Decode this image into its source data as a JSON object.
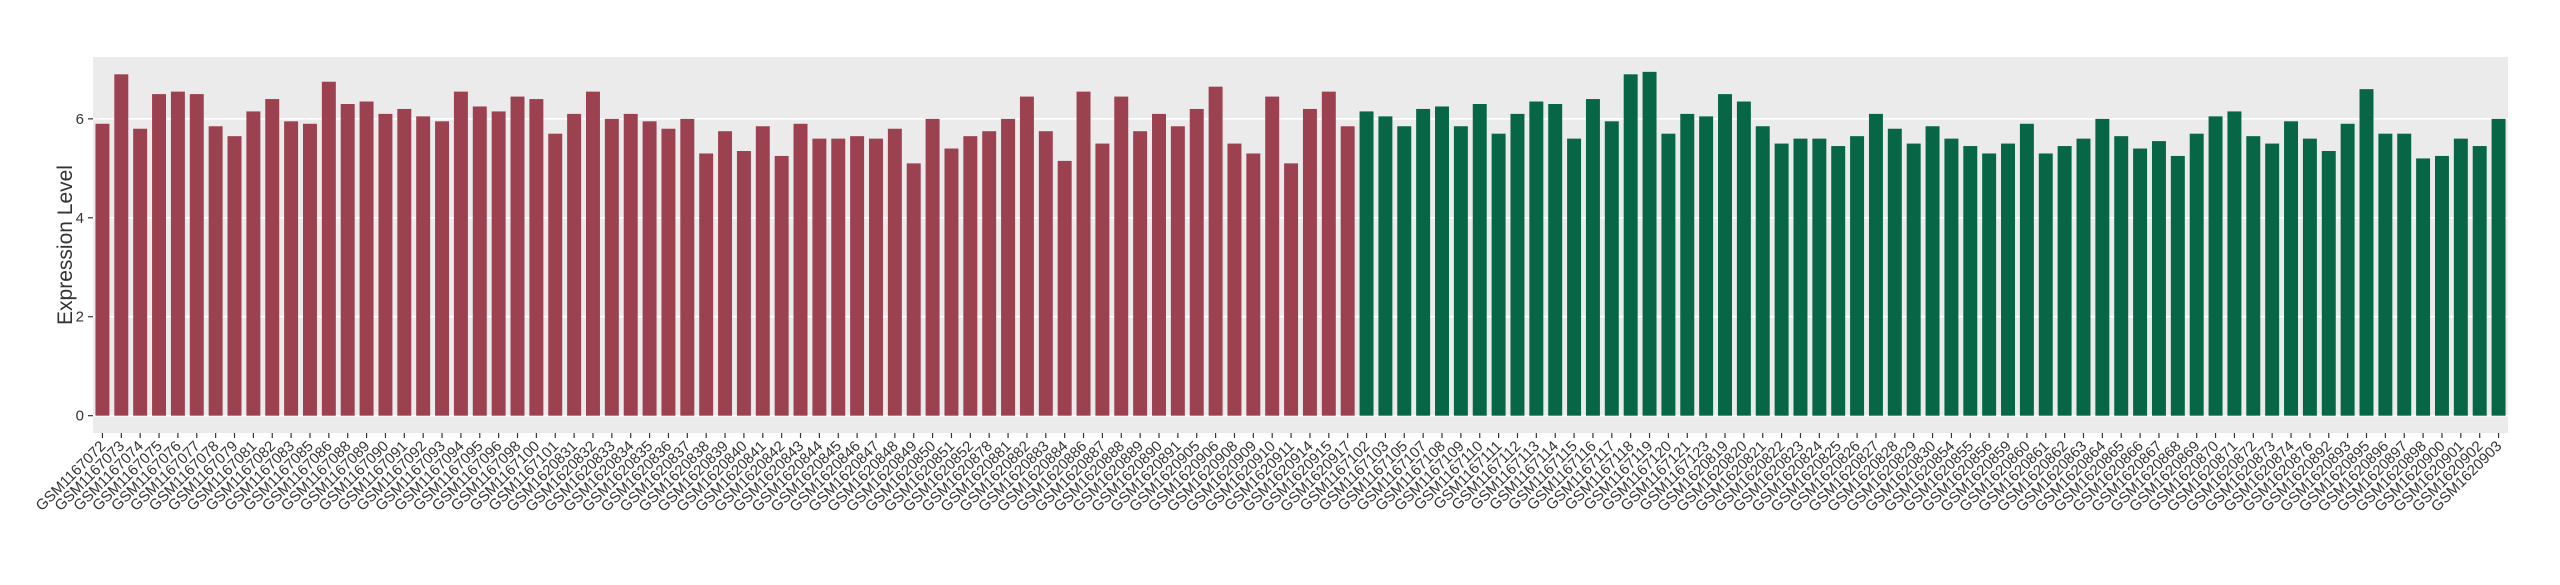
{
  "chart_data": {
    "type": "bar",
    "y_label": "Expression Level",
    "categories": [
      "GSM1167072",
      "GSM1167073",
      "GSM1167074",
      "GSM1167075",
      "GSM1167076",
      "GSM1167077",
      "GSM1167078",
      "GSM1167079",
      "GSM1167081",
      "GSM1167082",
      "GSM1167083",
      "GSM1167085",
      "GSM1167086",
      "GSM1167088",
      "GSM1167089",
      "GSM1167090",
      "GSM1167091",
      "GSM1167092",
      "GSM1167093",
      "GSM1167094",
      "GSM1167095",
      "GSM1167096",
      "GSM1167098",
      "GSM1167100",
      "GSM1167101",
      "GSM1620831",
      "GSM1620832",
      "GSM1620833",
      "GSM1620834",
      "GSM1620835",
      "GSM1620836",
      "GSM1620837",
      "GSM1620838",
      "GSM1620839",
      "GSM1620840",
      "GSM1620841",
      "GSM1620842",
      "GSM1620843",
      "GSM1620844",
      "GSM1620845",
      "GSM1620846",
      "GSM1620847",
      "GSM1620848",
      "GSM1620849",
      "GSM1620850",
      "GSM1620851",
      "GSM1620852",
      "GSM1620878",
      "GSM1620881",
      "GSM1620882",
      "GSM1620883",
      "GSM1620884",
      "GSM1620886",
      "GSM1620887",
      "GSM1620888",
      "GSM1620889",
      "GSM1620890",
      "GSM1620891",
      "GSM1620905",
      "GSM1620906",
      "GSM1620908",
      "GSM1620909",
      "GSM1620910",
      "GSM1620911",
      "GSM1620914",
      "GSM1620915",
      "GSM1620917",
      "GSM1167102",
      "GSM1167103",
      "GSM1167105",
      "GSM1167107",
      "GSM1167108",
      "GSM1167109",
      "GSM1167110",
      "GSM1167111",
      "GSM1167112",
      "GSM1167113",
      "GSM1167114",
      "GSM1167115",
      "GSM1167116",
      "GSM1167117",
      "GSM1167118",
      "GSM1167119",
      "GSM1167120",
      "GSM1167121",
      "GSM1167123",
      "GSM1620819",
      "GSM1620820",
      "GSM1620821",
      "GSM1620822",
      "GSM1620823",
      "GSM1620824",
      "GSM1620825",
      "GSM1620826",
      "GSM1620827",
      "GSM1620828",
      "GSM1620829",
      "GSM1620830",
      "GSM1620854",
      "GSM1620855",
      "GSM1620856",
      "GSM1620859",
      "GSM1620860",
      "GSM1620861",
      "GSM1620862",
      "GSM1620863",
      "GSM1620864",
      "GSM1620865",
      "GSM1620866",
      "GSM1620867",
      "GSM1620868",
      "GSM1620869",
      "GSM1620870",
      "GSM1620871",
      "GSM1620872",
      "GSM1620873",
      "GSM1620874",
      "GSM1620876",
      "GSM1620892",
      "GSM1620893",
      "GSM1620895",
      "GSM1620896",
      "GSM1620897",
      "GSM1620898",
      "GSM1620900",
      "GSM1620901",
      "GSM1620902",
      "GSM1620903"
    ],
    "values": [
      5.9,
      6.9,
      5.8,
      6.5,
      6.55,
      6.5,
      5.85,
      5.65,
      6.15,
      6.4,
      5.95,
      5.9,
      6.75,
      6.3,
      6.35,
      6.1,
      6.2,
      6.05,
      5.95,
      6.55,
      6.25,
      6.15,
      6.45,
      6.4,
      5.7,
      6.1,
      6.55,
      6.0,
      6.1,
      5.95,
      5.8,
      6.0,
      5.3,
      5.75,
      5.35,
      5.85,
      5.25,
      5.9,
      5.6,
      5.6,
      5.65,
      5.6,
      5.8,
      5.1,
      6.0,
      5.4,
      5.65,
      5.75,
      6.0,
      6.45,
      5.75,
      5.15,
      6.55,
      5.5,
      6.45,
      5.75,
      6.1,
      5.85,
      6.2,
      6.65,
      5.5,
      5.3,
      6.45,
      5.1,
      6.2,
      6.55,
      5.85,
      6.15,
      6.05,
      5.85,
      6.2,
      6.25,
      5.85,
      6.3,
      5.7,
      6.1,
      6.35,
      6.3,
      5.6,
      6.4,
      5.95,
      6.9,
      6.95,
      5.7,
      6.1,
      6.05,
      6.5,
      6.35,
      5.85,
      5.5,
      5.6,
      5.6,
      5.45,
      5.65,
      6.1,
      5.8,
      5.5,
      5.85,
      5.6,
      5.45,
      5.3,
      5.5,
      5.9,
      5.3,
      5.45,
      5.6,
      6.0,
      5.65,
      5.4,
      5.55,
      5.25,
      5.7,
      6.05,
      6.15,
      5.65,
      5.5,
      5.95,
      5.6,
      5.35,
      5.9,
      6.6,
      5.7,
      5.7,
      5.2,
      5.25,
      5.6,
      5.45,
      6.0
    ],
    "colors": [
      "#9b4150",
      "#9b4150",
      "#9b4150",
      "#9b4150",
      "#9b4150",
      "#9b4150",
      "#9b4150",
      "#9b4150",
      "#9b4150",
      "#9b4150",
      "#9b4150",
      "#9b4150",
      "#9b4150",
      "#9b4150",
      "#9b4150",
      "#9b4150",
      "#9b4150",
      "#9b4150",
      "#9b4150",
      "#9b4150",
      "#9b4150",
      "#9b4150",
      "#9b4150",
      "#9b4150",
      "#9b4150",
      "#9b4150",
      "#9b4150",
      "#9b4150",
      "#9b4150",
      "#9b4150",
      "#9b4150",
      "#9b4150",
      "#9b4150",
      "#9b4150",
      "#9b4150",
      "#9b4150",
      "#9b4150",
      "#9b4150",
      "#9b4150",
      "#9b4150",
      "#9b4150",
      "#9b4150",
      "#9b4150",
      "#9b4150",
      "#9b4150",
      "#9b4150",
      "#9b4150",
      "#9b4150",
      "#9b4150",
      "#9b4150",
      "#9b4150",
      "#9b4150",
      "#9b4150",
      "#9b4150",
      "#9b4150",
      "#9b4150",
      "#9b4150",
      "#9b4150",
      "#9b4150",
      "#9b4150",
      "#9b4150",
      "#9b4150",
      "#9b4150",
      "#9b4150",
      "#9b4150",
      "#9b4150",
      "#9b4150",
      "#076645",
      "#076645",
      "#076645",
      "#076645",
      "#076645",
      "#076645",
      "#076645",
      "#076645",
      "#076645",
      "#076645",
      "#076645",
      "#076645",
      "#076645",
      "#076645",
      "#076645",
      "#076645",
      "#076645",
      "#076645",
      "#076645",
      "#076645",
      "#076645",
      "#076645",
      "#076645",
      "#076645",
      "#076645",
      "#076645",
      "#076645",
      "#076645",
      "#076645",
      "#076645",
      "#076645",
      "#076645",
      "#076645",
      "#076645",
      "#076645",
      "#076645",
      "#076645",
      "#076645",
      "#076645",
      "#076645",
      "#076645",
      "#076645",
      "#076645",
      "#076645",
      "#076645",
      "#076645",
      "#076645",
      "#076645",
      "#076645",
      "#076645",
      "#076645",
      "#076645",
      "#076645",
      "#076645",
      "#076645",
      "#076645",
      "#076645",
      "#076645",
      "#076645",
      "#076645",
      "#076645"
    ],
    "ylim": [
      -0.35,
      7.25
    ],
    "yticks": [
      0,
      2,
      4,
      6
    ],
    "grid": true
  }
}
